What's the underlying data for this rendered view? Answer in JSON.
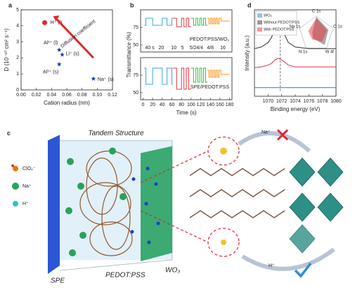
{
  "chart_data": [
    {
      "type": "scatter",
      "panel": "a",
      "x_label": "Cation radius (nm)",
      "y_label": "D (10⁻¹⁰ cm² s⁻¹)",
      "xlim": [
        0,
        0.12
      ],
      "ylim": [
        0,
        5
      ],
      "xticks": [
        {
          "value": 0,
          "label": "0.00"
        },
        {
          "value": 0.02,
          "label": "0.02"
        },
        {
          "value": 0.04,
          "label": "0.04"
        },
        {
          "value": 0.06,
          "label": "0.06"
        },
        {
          "value": 0.08,
          "label": "0.08"
        },
        {
          "value": 0.1,
          "label": "0.10"
        },
        {
          "value": 0.12,
          "label": "0.12"
        }
      ],
      "yticks": [
        0,
        1,
        2,
        3,
        4,
        5
      ],
      "annotation": "Diffusion coefficient",
      "series": [
        {
          "marker": "circle",
          "color": "#e3262b",
          "x": [
            0.031
          ],
          "values": [
            4.2
          ],
          "point_labels": [
            "H⁺ (l)"
          ]
        },
        {
          "marker": "star",
          "color": "#1f3fbf",
          "x": [
            0.05,
            0.054,
            0.05,
            0.095
          ],
          "values": [
            2.5,
            2.2,
            1.6,
            0.7
          ],
          "point_labels": [
            "Al³⁺ (l)",
            "Li⁺ (s)",
            "Al³⁺ (s)",
            "Na⁺ (s)"
          ]
        }
      ]
    },
    {
      "type": "line",
      "panel": "b",
      "y_label": "Transmittance (%)",
      "caption": "PEDOT:PSS/WO₃",
      "xlim": [
        -5,
        185
      ],
      "ylim": [
        40,
        100
      ],
      "yticks": [
        50,
        75
      ],
      "annotations": [
        {
          "text": "40 s",
          "color": "#3aa6e0"
        },
        {
          "text": "20",
          "color": "#3aa6e0"
        },
        {
          "text": "10",
          "color": "#e8323c"
        },
        {
          "text": "5",
          "color": "#e8323c"
        },
        {
          "text": "5/2",
          "color": "#39b54a"
        },
        {
          "text": "4/4",
          "color": "#39b54a"
        },
        {
          "text": "4/8",
          "color": "#f7941d"
        },
        {
          "text": "16",
          "color": "#f7941d"
        }
      ],
      "series": [
        {
          "color": "#3aa6e0",
          "x": [
            2,
            6,
            6,
            20,
            20,
            40,
            40,
            50,
            50,
            60,
            60,
            62
          ],
          "values": [
            78,
            78,
            88,
            88,
            78,
            78,
            88,
            88,
            78,
            78,
            88,
            88
          ]
        },
        {
          "color": "#e8323c",
          "x": [
            62,
            70,
            70,
            80,
            80,
            85,
            85,
            90,
            90,
            95,
            95,
            100
          ],
          "values": [
            88,
            88,
            76,
            76,
            88,
            88,
            76,
            76,
            88,
            88,
            76,
            76
          ]
        },
        {
          "color": "#39b54a",
          "x": [
            100,
            105,
            105,
            110,
            110,
            114,
            114,
            118,
            118,
            122,
            122,
            126,
            126,
            130,
            130,
            134
          ],
          "values": [
            88,
            88,
            78,
            78,
            88,
            88,
            78,
            78,
            88,
            88,
            78,
            78,
            88,
            88,
            78,
            78
          ]
        },
        {
          "color": "#f7941d",
          "x": [
            134,
            137,
            137,
            140,
            140,
            143,
            143,
            146,
            146,
            149,
            149,
            152,
            152,
            155,
            155,
            158,
            158,
            162,
            162,
            180
          ],
          "values": [
            88,
            88,
            80,
            80,
            88,
            88,
            80,
            80,
            88,
            88,
            80,
            80,
            88,
            88,
            80,
            80,
            88,
            88,
            84,
            84
          ]
        }
      ]
    },
    {
      "type": "line",
      "x_label": "Time (s)",
      "caption": "SPE/PEDOT:PSS",
      "xlim": [
        -5,
        185
      ],
      "ylim": [
        40,
        100
      ],
      "yticks": [
        50,
        75
      ],
      "xticks": [
        0,
        20,
        40,
        60,
        80,
        100,
        120,
        140,
        160,
        180
      ],
      "series": [
        {
          "color": "#3aa6e0",
          "x": [
            2,
            6,
            6,
            20,
            20,
            40,
            40,
            50,
            50,
            60,
            60,
            62
          ],
          "values": [
            85,
            85,
            62,
            62,
            85,
            85,
            62,
            62,
            85,
            85,
            62,
            62
          ]
        },
        {
          "color": "#e8323c",
          "x": [
            62,
            70,
            70,
            80,
            80,
            85,
            85,
            90,
            90,
            95,
            95,
            100
          ],
          "values": [
            85,
            85,
            55,
            55,
            85,
            85,
            55,
            55,
            85,
            85,
            55,
            55
          ]
        },
        {
          "color": "#39b54a",
          "x": [
            100,
            105,
            105,
            110,
            110,
            114,
            114,
            118,
            118,
            122,
            122,
            126,
            126,
            130,
            130,
            134
          ],
          "values": [
            85,
            85,
            65,
            65,
            85,
            85,
            65,
            65,
            85,
            85,
            65,
            65,
            85,
            85,
            65,
            65
          ]
        },
        {
          "color": "#f7941d",
          "x": [
            134,
            137,
            137,
            140,
            140,
            143,
            143,
            146,
            146,
            149,
            149,
            152,
            152,
            155,
            155,
            158,
            158,
            162,
            162,
            180
          ],
          "values": [
            82,
            82,
            72,
            72,
            82,
            82,
            72,
            72,
            82,
            82,
            72,
            72,
            82,
            82,
            72,
            72,
            82,
            82,
            76,
            76
          ]
        }
      ]
    },
    {
      "type": "line",
      "panel": "d",
      "x_label": "Binding energy (eV)",
      "y_label": "Intensity (a.u.)",
      "annotation": "Na 1s",
      "xlim": [
        1068,
        1080
      ],
      "ylim": [
        0,
        1
      ],
      "xticks": [
        1070,
        1072,
        1074,
        1076,
        1078,
        1080
      ],
      "legend": "upper left",
      "inset_labels": [
        "C 1s",
        "O 1s",
        "W 4f",
        "N 1s",
        "Na 1s"
      ],
      "x": [
        1068,
        1069,
        1070,
        1070.5,
        1071,
        1071.5,
        1072,
        1072.5,
        1073,
        1074,
        1076,
        1078,
        1080
      ],
      "series": [
        {
          "name": "WO₃",
          "color": "#2a7fc9",
          "values": [
            0.1,
            0.1,
            0.1,
            0.1,
            0.1,
            0.1,
            0.1,
            0.1,
            0.1,
            0.1,
            0.1,
            0.1,
            0.1
          ]
        },
        {
          "name": "Without PEDOT:PSS",
          "color": "#333333",
          "values": [
            0.55,
            0.57,
            0.62,
            0.68,
            0.78,
            0.85,
            0.8,
            0.7,
            0.62,
            0.57,
            0.55,
            0.55,
            0.55
          ]
        },
        {
          "name": "With PEDOT:PSS",
          "color": "#e8323c",
          "values": [
            0.33,
            0.34,
            0.36,
            0.38,
            0.42,
            0.44,
            0.42,
            0.39,
            0.36,
            0.34,
            0.34,
            0.34,
            0.34
          ]
        }
      ]
    }
  ],
  "panel_c": {
    "label": "c",
    "title": "Tandem Structure",
    "legend": [
      "ClO₄⁻",
      "Na⁺",
      "H⁺"
    ],
    "layers": [
      "SPE",
      "PEDOT:PSS",
      "WO₃"
    ],
    "ions": [
      "Na⁺",
      "H⁺"
    ]
  }
}
